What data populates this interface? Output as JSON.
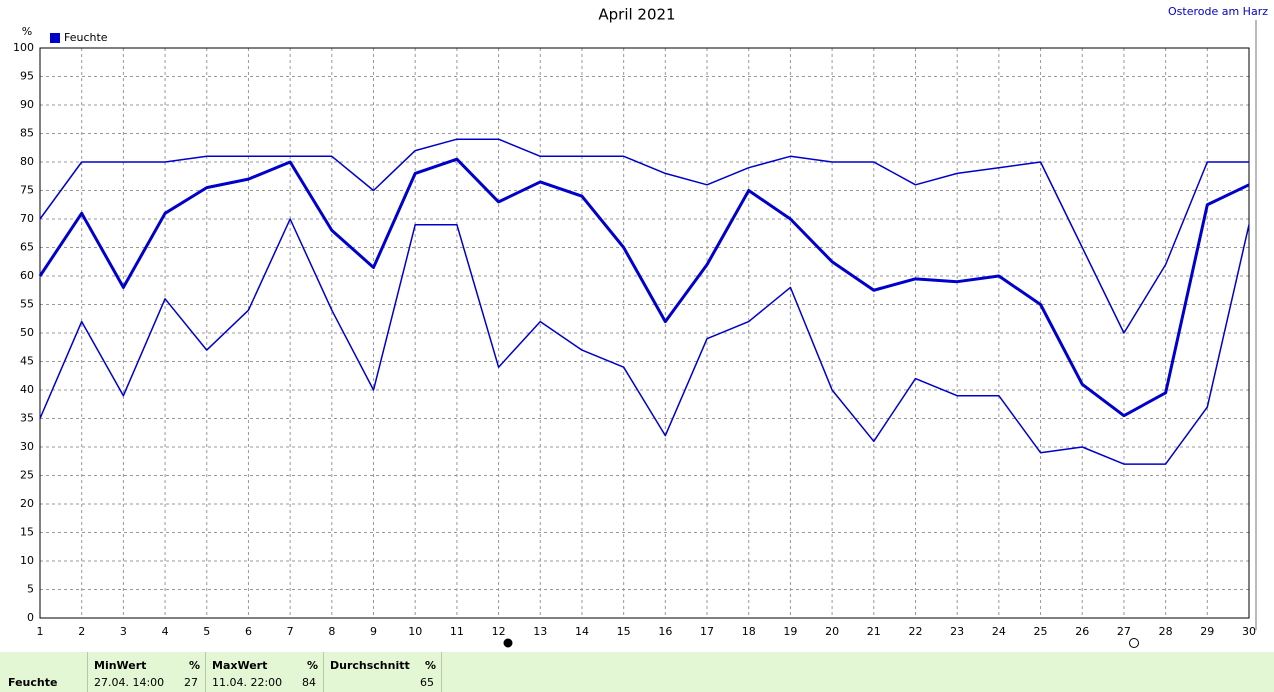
{
  "chart_data": {
    "type": "line",
    "title": "April 2021",
    "location": "Osterode am Harz",
    "y_unit": "%",
    "x": [
      1,
      2,
      3,
      4,
      5,
      6,
      7,
      8,
      9,
      10,
      11,
      12,
      13,
      14,
      15,
      16,
      17,
      18,
      19,
      20,
      21,
      22,
      23,
      24,
      25,
      26,
      27,
      28,
      29,
      30
    ],
    "xlim": [
      1,
      30
    ],
    "xticks": [
      1,
      2,
      3,
      4,
      5,
      6,
      7,
      8,
      9,
      10,
      11,
      12,
      13,
      14,
      15,
      16,
      17,
      18,
      19,
      20,
      21,
      22,
      23,
      24,
      25,
      26,
      27,
      28,
      29,
      30
    ],
    "ylim": [
      0,
      100
    ],
    "yticks": [
      0,
      5,
      10,
      15,
      20,
      25,
      30,
      35,
      40,
      45,
      50,
      55,
      60,
      65,
      70,
      75,
      80,
      85,
      90,
      95,
      100
    ],
    "grid": true,
    "legend": "top-left",
    "series": [
      {
        "name": "Feuchte",
        "color": "#0000cc",
        "width": 3,
        "values": [
          60,
          71,
          58,
          71,
          75.5,
          77,
          80,
          68,
          61.5,
          78,
          80.5,
          73,
          76.5,
          74,
          65,
          52,
          62,
          75,
          70,
          62.5,
          57.5,
          59.5,
          59,
          60,
          55,
          41,
          35.5,
          39.5,
          72.5,
          76
        ]
      },
      {
        "color": "#0000cc",
        "width": 1.5,
        "values": [
          70,
          80,
          80,
          80,
          81,
          81,
          81,
          81,
          75,
          82,
          84,
          84,
          81,
          81,
          81,
          78,
          76,
          79,
          81,
          80,
          80,
          76,
          78,
          79,
          80,
          65,
          50,
          62,
          80,
          80
        ]
      },
      {
        "color": "#0000cc",
        "width": 1.5,
        "values": [
          35,
          52,
          39,
          56,
          47,
          54,
          70,
          54,
          40,
          69,
          69,
          44,
          52,
          47,
          44,
          32,
          49,
          52,
          58,
          40,
          31,
          42,
          39,
          39,
          29,
          30,
          27,
          27,
          37,
          69
        ]
      }
    ]
  },
  "summary": {
    "label": "Feuchte",
    "min": {
      "header": "MinWert",
      "unit": "%",
      "time": "27.04.  14:00",
      "value": 27
    },
    "max": {
      "header": "MaxWert",
      "unit": "%",
      "time": "11.04.  22:00",
      "value": 84
    },
    "mean": {
      "header": "Durchschnitt",
      "unit": "%",
      "value": 65
    }
  }
}
